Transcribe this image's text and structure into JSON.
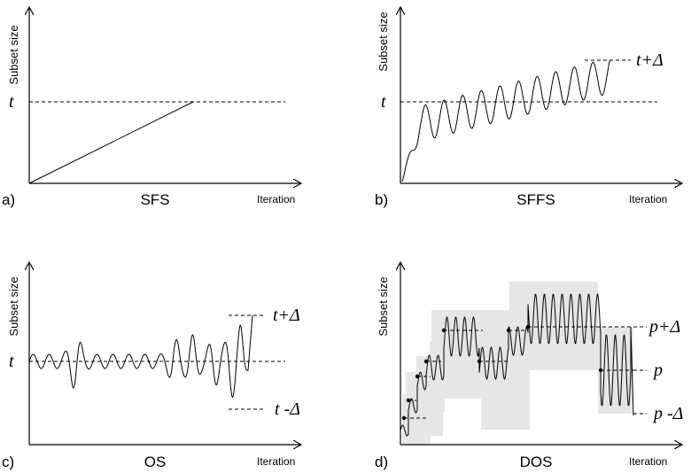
{
  "panels": {
    "a": {
      "letter": "a)",
      "method": "SFS",
      "ylabel": "Subset size",
      "xlabel": "Iteration",
      "level": "t"
    },
    "b": {
      "letter": "b)",
      "method": "SFFS",
      "ylabel": "Subset size",
      "xlabel": "Iteration",
      "level": "t",
      "upper": "t+Δ"
    },
    "c": {
      "letter": "c)",
      "method": "OS",
      "ylabel": "Subset size",
      "xlabel": "Iteration",
      "level": "t",
      "upper": "t+Δ",
      "lower": "t -Δ"
    },
    "d": {
      "letter": "d)",
      "method": "DOS",
      "ylabel": "Subset size",
      "xlabel": "Iteration",
      "level": "p",
      "upper": "p+Δ",
      "lower": "p -Δ"
    }
  }
}
